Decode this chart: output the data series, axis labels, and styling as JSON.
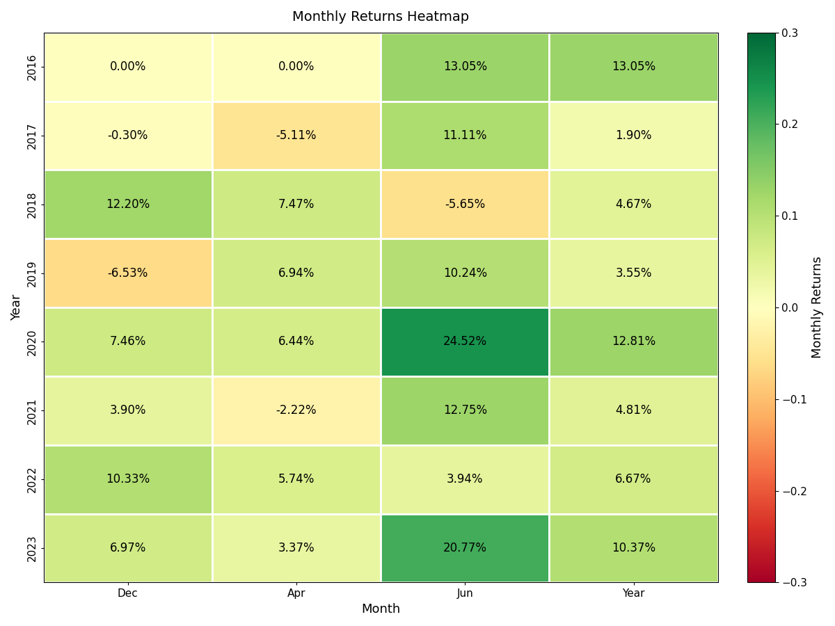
{
  "title": "Monthly Returns Heatmap",
  "xlabel": "Month",
  "ylabel": "Year",
  "colorbar_label": "Monthly Returns",
  "months": [
    "Dec",
    "Apr",
    "Jun",
    "Year"
  ],
  "years": [
    "2016",
    "2017",
    "2018",
    "2019",
    "2020",
    "2021",
    "2022",
    "2023"
  ],
  "values": [
    [
      0.0,
      0.0,
      0.1305,
      0.1305
    ],
    [
      -0.003,
      -0.0511,
      0.1111,
      0.019
    ],
    [
      0.122,
      0.0747,
      -0.0565,
      0.0467
    ],
    [
      -0.0653,
      0.0694,
      0.1024,
      0.0355
    ],
    [
      0.0746,
      0.0644,
      0.2452,
      0.1281
    ],
    [
      0.039,
      -0.0222,
      0.1275,
      0.0481
    ],
    [
      0.1033,
      0.0574,
      0.0394,
      0.0667
    ],
    [
      0.0697,
      0.0337,
      0.2077,
      0.1037
    ]
  ],
  "labels": [
    [
      "0.00%",
      "0.00%",
      "13.05%",
      "13.05%"
    ],
    [
      "-0.30%",
      "-5.11%",
      "11.11%",
      "1.90%"
    ],
    [
      "12.20%",
      "7.47%",
      "-5.65%",
      "4.67%"
    ],
    [
      "-6.53%",
      "6.94%",
      "10.24%",
      "3.55%"
    ],
    [
      "7.46%",
      "6.44%",
      "24.52%",
      "12.81%"
    ],
    [
      "3.90%",
      "-2.22%",
      "12.75%",
      "4.81%"
    ],
    [
      "10.33%",
      "5.74%",
      "3.94%",
      "6.67%"
    ],
    [
      "6.97%",
      "3.37%",
      "20.77%",
      "10.37%"
    ]
  ],
  "vmin": -0.3,
  "vmax": 0.3,
  "cmap": "RdYlGn",
  "figsize": [
    12,
    9
  ],
  "dpi": 100,
  "background_color": "white",
  "linewidths": 2,
  "linecolor": "white",
  "annot_fontsize": 12,
  "title_fontsize": 14,
  "label_fontsize": 13,
  "tick_fontsize": 11
}
